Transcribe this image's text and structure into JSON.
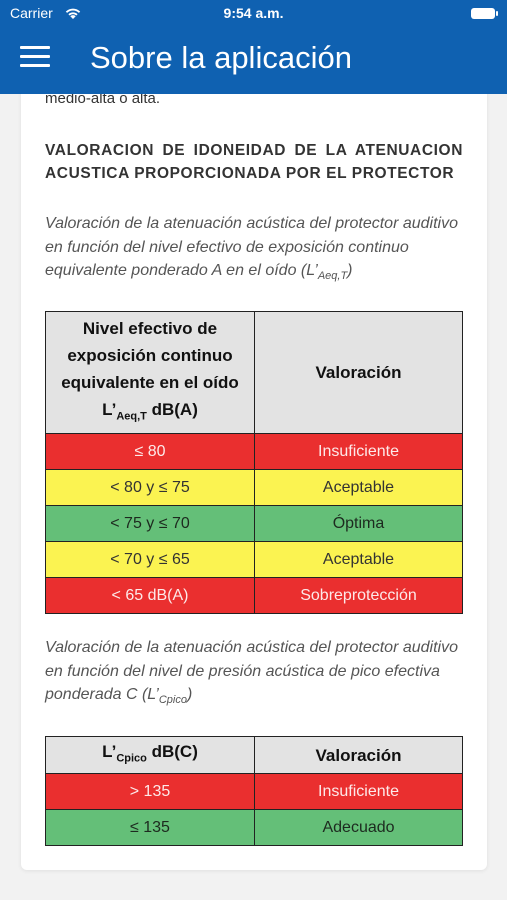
{
  "status_bar": {
    "carrier": "Carrier",
    "time": "9:54 a.m."
  },
  "header": {
    "title": "Sobre la aplicación"
  },
  "content": {
    "clipped_text": "medio-alta o alta.",
    "heading_line1": "VALORACION DE IDONEIDAD DE LA ATENUACION",
    "heading_line2": "ACUSTICA PROPORCIONADA POR EL PROTECTOR",
    "para1_text": "Valoración de la atenuación acústica del protector auditivo en función del nivel efectivo de exposición continuo equivalente ponderado A en el oído (L’",
    "para1_sub": "Aeq,T",
    "para1_end": ")",
    "table1": {
      "header_col1_text": "Nivel efectivo de exposición continuo equivalente en el oído",
      "header_col1_symbol": "L’",
      "header_col1_sub": "Aeq,T",
      "header_col1_unit": " dB(A)",
      "header_col2": "Valoración",
      "rows": [
        {
          "level": "≤ 80",
          "rating": "Insuficiente",
          "color": "#ea2f2f"
        },
        {
          "level": "< 80 y ≤ 75",
          "rating": "Aceptable",
          "color": "#fbf351"
        },
        {
          "level": "< 75 y ≤ 70",
          "rating": "Óptima",
          "color": "#64bf78"
        },
        {
          "level": "< 70 y ≤ 65",
          "rating": "Aceptable",
          "color": "#fbf351"
        },
        {
          "level": "< 65 dB(A)",
          "rating": "Sobreprotección",
          "color": "#ea2f2f"
        }
      ]
    },
    "para2_text": "Valoración de la atenuación acústica del protector auditivo en función del nivel de presión acústica de pico efectiva ponderada C (L’",
    "para2_sub": "Cpico",
    "para2_end": ")",
    "table2": {
      "header_col1_symbol": "L’",
      "header_col1_sub": "Cpico",
      "header_col1_unit": " dB(C)",
      "header_col2": "Valoración",
      "rows": [
        {
          "level": "> 135",
          "rating": "Insuficiente",
          "color": "#ea2f2f"
        },
        {
          "level": "≤ 135",
          "rating": "Adecuado",
          "color": "#64bf78"
        }
      ]
    }
  }
}
